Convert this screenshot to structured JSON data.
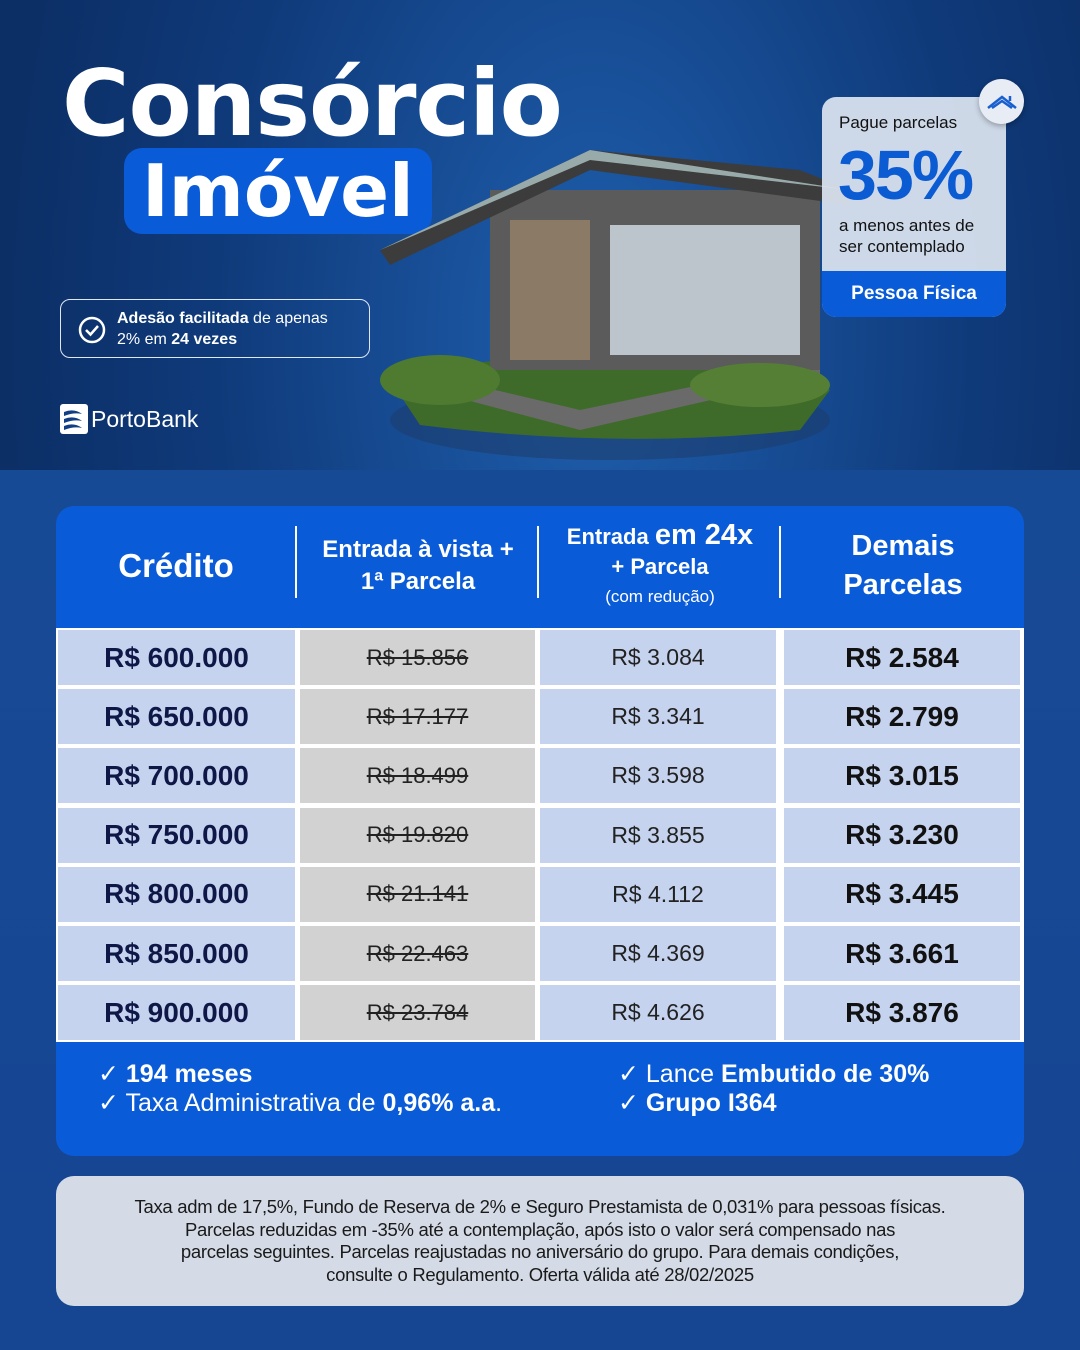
{
  "hero": {
    "title": "Consórcio",
    "subtitle": "Imóvel"
  },
  "promo": {
    "line1": "Pague parcelas",
    "percent": "35%",
    "line2": "a menos antes de",
    "line3": "ser contemplado",
    "badge": "Pessoa Física",
    "icon": "house-roof-icon"
  },
  "adesao": {
    "bold1": "Adesão facilitada",
    "text1": " de apenas",
    "text2": "2% em ",
    "bold2": "24 vezes",
    "icon": "check-circle-icon"
  },
  "brand": {
    "name": "PortoBank"
  },
  "table": {
    "headers": [
      {
        "l1": "Crédito"
      },
      {
        "l1": "Entrada à vista +",
        "l2": "1ª Parcela"
      },
      {
        "l1a": "Entrada ",
        "l1b": "em 24x",
        "l2": "+ Parcela",
        "l3": "(com redução)"
      },
      {
        "l1": "Demais",
        "l2": "Parcelas"
      }
    ],
    "rows": [
      [
        "R$ 600.000",
        "R$ 15.856",
        "R$ 3.084",
        "R$ 2.584"
      ],
      [
        "R$ 650.000",
        "R$ 17.177",
        "R$ 3.341",
        "R$ 2.799"
      ],
      [
        "R$ 700.000",
        "R$ 18.499",
        "R$ 3.598",
        "R$ 3.015"
      ],
      [
        "R$ 750.000",
        "R$ 19.820",
        "R$ 3.855",
        "R$ 3.230"
      ],
      [
        "R$ 800.000",
        "R$ 21.141",
        "R$ 4.112",
        "R$ 3.445"
      ],
      [
        "R$ 850.000",
        "R$ 22.463",
        "R$ 4.369",
        "R$ 3.661"
      ],
      [
        "R$ 900.000",
        "R$ 23.784",
        "R$ 4.626",
        "R$ 3.876"
      ]
    ]
  },
  "features": {
    "f1": "194 meses",
    "f2a": "Taxa Administrativa de ",
    "f2b": "0,96% a.a",
    ".": ".",
    "f3a": "Lance ",
    "f3b": "Embutido de 30%",
    "f4": "Grupo I364",
    "check": "✓"
  },
  "disclaimer": {
    "l1": "Taxa adm de 17,5%, Fundo de Reserva de 2% e Seguro Prestamista de 0,031% para pessoas físicas.",
    "l2": "Parcelas reduzidas em -35% até a contemplação, após isto o valor será compensado nas",
    "l3": "parcelas seguintes. Parcelas reajustadas no aniversário do grupo. Para demais condições,",
    "l4": "consulte o Regulamento. Oferta válida até 28/02/2025"
  },
  "colors": {
    "brand_blue": "#0a5bd8",
    "navy": "#0f3a7a",
    "row_blue": "#c5d3ef",
    "row_gray": "#d2d2d2"
  }
}
